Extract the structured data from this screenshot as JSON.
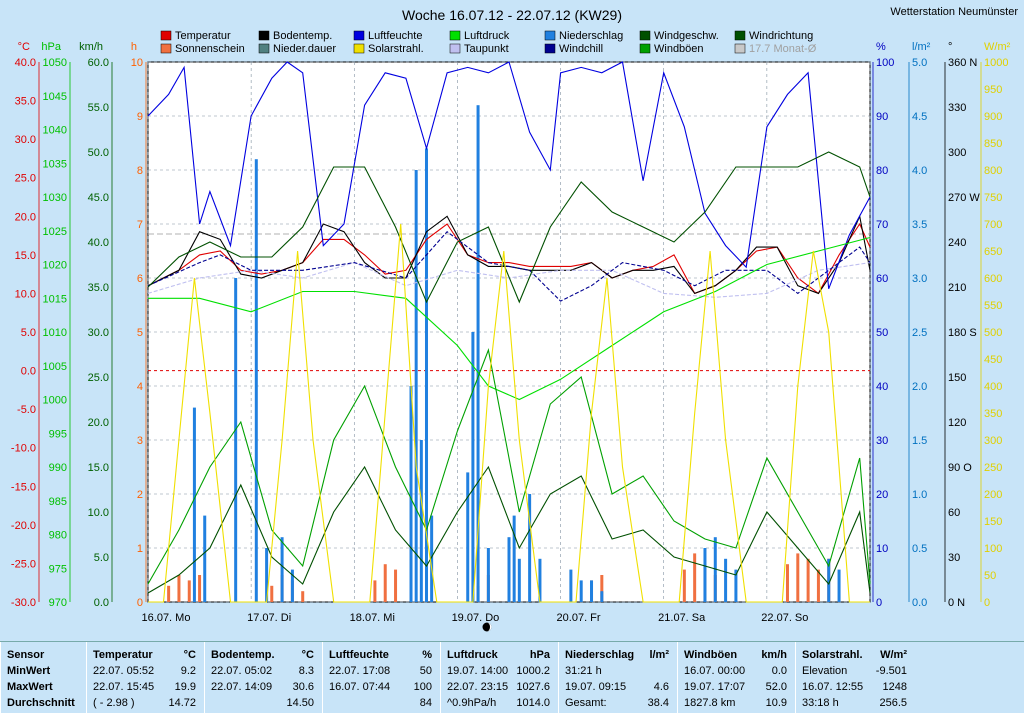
{
  "header": {
    "title": "Woche 16.07.12 - 22.07.12 (KW29)",
    "station": "Wetterstation Neumünster"
  },
  "axes_left": [
    {
      "unit": "°C",
      "color": "#e00000",
      "ticks": [
        "40.0",
        "35.0",
        "30.0",
        "25.0",
        "20.0",
        "15.0",
        "10.0",
        "5.0",
        "0.0",
        "-5.0",
        "-10.0",
        "-15.0",
        "-20.0",
        "-25.0",
        "-30.0"
      ]
    },
    {
      "unit": "hPa",
      "color": "#00c000",
      "ticks": [
        "1050",
        "1045",
        "1040",
        "1035",
        "1030",
        "1025",
        "1020",
        "1015",
        "1010",
        "1005",
        "1000",
        "995",
        "990",
        "985",
        "980",
        "975",
        "970"
      ]
    },
    {
      "unit": "km/h",
      "color": "#006000",
      "ticks": [
        "60.0",
        "55.0",
        "50.0",
        "45.0",
        "40.0",
        "35.0",
        "30.0",
        "25.0",
        "20.0",
        "15.0",
        "10.0",
        "5.0",
        "0.0"
      ]
    },
    {
      "unit": "h",
      "color": "#ff6000",
      "ticks": [
        "10",
        "9",
        "8",
        "7",
        "6",
        "5",
        "4",
        "3",
        "2",
        "1",
        "0"
      ]
    }
  ],
  "axes_right": [
    {
      "unit": "%",
      "color": "#0000c0",
      "ticks": [
        "100",
        "90",
        "80",
        "70",
        "60",
        "50",
        "40",
        "30",
        "20",
        "10",
        "0"
      ]
    },
    {
      "unit": "l/m²",
      "color": "#0070c0",
      "ticks": [
        "5.0",
        "4.5",
        "4.0",
        "3.5",
        "3.0",
        "2.5",
        "2.0",
        "1.5",
        "1.0",
        "0.5",
        "0.0"
      ]
    },
    {
      "unit": "°",
      "color": "#000000",
      "ticks": [
        "360 N",
        "330",
        "300",
        "270 W",
        "240",
        "210",
        "180 S",
        "150",
        "120",
        "90 O",
        "60",
        "30",
        "0 N"
      ]
    },
    {
      "unit": "W/m²",
      "color": "#e0d000",
      "ticks": [
        "1000",
        "950",
        "900",
        "850",
        "800",
        "750",
        "700",
        "650",
        "600",
        "550",
        "500",
        "450",
        "400",
        "350",
        "300",
        "250",
        "200",
        "150",
        "100",
        "50",
        "0"
      ]
    }
  ],
  "x_labels": [
    "16.07. Mo",
    "17.07. Di",
    "18.07. Mi",
    "19.07. Do",
    "20.07. Fr",
    "21.07. Sa",
    "22.07. So"
  ],
  "legend": [
    {
      "label": "Temperatur",
      "color": "#e00000"
    },
    {
      "label": "Bodentemp.",
      "color": "#000000"
    },
    {
      "label": "Luftfeuchte",
      "color": "#0000e0"
    },
    {
      "label": "Luftdruck",
      "color": "#00e000"
    },
    {
      "label": "Niederschlag",
      "color": "#2080e0"
    },
    {
      "label": "Windgeschw.",
      "color": "#005000"
    },
    {
      "label": "Windrichtung",
      "color": "#005000"
    },
    {
      "label": "Sonnenschein",
      "color": "#f07040"
    },
    {
      "label": "Nieder.dauer",
      "color": "#508080"
    },
    {
      "label": "Solarstrahl.",
      "color": "#f0e000"
    },
    {
      "label": "Taupunkt",
      "color": "#c0c0f0"
    },
    {
      "label": "Windchill",
      "color": "#000090"
    },
    {
      "label": "Windböen",
      "color": "#00a000"
    },
    {
      "label": "17.7 Monat-Ø",
      "color": "#c8c8c8"
    }
  ],
  "stats": {
    "sensor": {
      "h": "Sensor",
      "rows": [
        "MinWert",
        "MaxWert",
        "Durchschnitt"
      ]
    },
    "temp": {
      "h": "Temperatur",
      "u": "°C",
      "rows": [
        [
          "22.07.  05:52",
          "9.2"
        ],
        [
          "22.07.  15:45",
          "19.9"
        ],
        [
          "( - 2.98 )",
          "14.72"
        ]
      ]
    },
    "boden": {
      "h": "Bodentemp.",
      "u": "°C",
      "rows": [
        [
          "22.07.  05:02",
          "8.3"
        ],
        [
          "22.07.  14:09",
          "30.6"
        ],
        [
          "",
          "14.50"
        ]
      ]
    },
    "feuchte": {
      "h": "Luftfeuchte",
      "u": "%",
      "rows": [
        [
          "22.07.  17:08",
          "50"
        ],
        [
          "16.07.  07:44",
          "100"
        ],
        [
          "",
          "84"
        ]
      ]
    },
    "druck": {
      "h": "Luftdruck",
      "u": "hPa",
      "rows": [
        [
          "19.07.  14:00",
          "1000.2"
        ],
        [
          "22.07.  23:15",
          "1027.6"
        ],
        [
          "^0.9hPa/h",
          "1014.0"
        ]
      ]
    },
    "nieder": {
      "h": "Niederschlag",
      "u": "l/m²",
      "rows": [
        [
          "31:21 h",
          ""
        ],
        [
          "19.07.  09:15",
          "4.6"
        ],
        [
          "Gesamt:",
          "38.4"
        ]
      ]
    },
    "boeen": {
      "h": "Windböen",
      "u": "km/h",
      "rows": [
        [
          "16.07.  00:00",
          "0.0"
        ],
        [
          "19.07.  17:07",
          "52.0"
        ],
        [
          "1827.8 km",
          "10.9"
        ]
      ]
    },
    "solar": {
      "h": "Solarstrahl.",
      "u": "W/m²",
      "rows": [
        [
          "Elevation",
          "-9.501"
        ],
        [
          "16.07.  12:55",
          "1248"
        ],
        [
          "33:18 h",
          "256.5"
        ]
      ]
    }
  },
  "chart_data": {
    "type": "line",
    "title": "Woche 16.07.12 - 22.07.12 (KW29)",
    "x_unit": "day",
    "xlim": [
      0,
      7
    ],
    "ref_lines": {
      "frost_line_temp": 0.0,
      "month_avg_temp": 17.7
    },
    "series": [
      {
        "name": "Temperatur",
        "unit": "°C",
        "color": "#e00000",
        "x": [
          0,
          0.3,
          0.5,
          0.7,
          0.9,
          1.1,
          1.3,
          1.5,
          1.7,
          1.9,
          2.1,
          2.3,
          2.5,
          2.7,
          2.9,
          3.1,
          3.3,
          3.5,
          3.7,
          3.9,
          4.1,
          4.3,
          4.5,
          4.7,
          4.9,
          5.1,
          5.3,
          5.5,
          5.7,
          5.9,
          6.1,
          6.3,
          6.5,
          6.7,
          6.9,
          7
        ],
        "y": [
          11,
          13,
          15,
          15.5,
          13,
          12.5,
          13,
          14,
          17,
          17,
          15,
          12.5,
          13,
          17,
          19,
          15,
          14,
          14,
          13.5,
          13.5,
          13.5,
          14,
          12,
          13,
          13.5,
          15,
          10,
          11,
          13,
          15.5,
          16,
          12,
          10,
          15,
          19,
          16
        ]
      },
      {
        "name": "Bodentemp.",
        "unit": "°C",
        "color": "#000000",
        "x": [
          0,
          0.3,
          0.5,
          0.7,
          0.9,
          1.1,
          1.3,
          1.5,
          1.7,
          1.9,
          2.1,
          2.3,
          2.5,
          2.7,
          2.9,
          3.1,
          3.3,
          3.5,
          3.7,
          3.9,
          4.1,
          4.3,
          4.5,
          4.7,
          4.9,
          5.1,
          5.3,
          5.5,
          5.7,
          5.9,
          6.1,
          6.3,
          6.5,
          6.7,
          6.9,
          7
        ],
        "y": [
          11,
          13,
          18,
          17,
          12.5,
          12,
          13,
          14,
          19,
          18,
          14,
          12,
          12,
          18,
          20,
          15,
          13.5,
          13.5,
          13,
          13,
          13,
          14,
          12,
          13,
          13,
          13.5,
          10,
          11,
          13,
          16,
          16,
          11,
          10,
          14,
          20,
          13
        ]
      },
      {
        "name": "Taupunkt",
        "unit": "°C",
        "color": "#c0c0f0",
        "x": [
          0,
          0.5,
          1,
          1.5,
          2,
          2.5,
          3,
          3.5,
          4,
          4.5,
          5,
          5.5,
          6,
          6.5,
          7
        ],
        "y": [
          10,
          12,
          13,
          12,
          14,
          11,
          13,
          12,
          13,
          13,
          10,
          9.5,
          10,
          13,
          14
        ]
      },
      {
        "name": "Windchill",
        "unit": "°C",
        "color": "#000090",
        "x": [
          0,
          0.5,
          0.7,
          1,
          1.5,
          2,
          2.5,
          2.9,
          3.3,
          3.7,
          4,
          4.3,
          4.6,
          5,
          5.3,
          5.6,
          6,
          6.3,
          6.6,
          6.9,
          7
        ],
        "y": [
          11,
          14,
          15,
          13,
          13,
          14,
          12,
          18,
          14,
          13,
          9,
          11,
          14,
          13,
          11,
          13,
          13,
          10,
          13,
          16,
          14
        ]
      },
      {
        "name": "Luftfeuchte",
        "unit": "%",
        "color": "#0000e0",
        "x": [
          0,
          0.2,
          0.35,
          0.5,
          0.6,
          0.8,
          1,
          1.2,
          1.35,
          1.5,
          1.7,
          1.9,
          2.1,
          2.3,
          2.5,
          2.7,
          2.9,
          3.1,
          3.3,
          3.5,
          3.7,
          3.9,
          4,
          4.2,
          4.4,
          4.6,
          4.8,
          5,
          5.2,
          5.4,
          5.6,
          5.8,
          6,
          6.2,
          6.4,
          6.6,
          6.8,
          7
        ],
        "y": [
          90,
          94,
          99,
          70,
          76,
          66,
          90,
          97,
          100,
          98,
          66,
          70,
          92,
          98,
          97,
          84,
          98,
          99,
          98,
          100,
          87,
          80,
          98,
          99,
          98,
          100,
          78,
          98,
          88,
          72,
          66,
          62,
          88,
          94,
          98,
          58,
          68,
          75
        ]
      },
      {
        "name": "Luftdruck",
        "unit": "hPa",
        "color": "#00e000",
        "x": [
          0,
          0.5,
          1,
          1.5,
          2,
          2.5,
          3,
          3.3,
          3.6,
          4,
          4.5,
          5,
          5.5,
          6,
          6.5,
          7
        ],
        "y": [
          1015,
          1015,
          1013,
          1016,
          1016,
          1015,
          1008,
          1002,
          1000,
          1003,
          1008,
          1013,
          1016,
          1020,
          1022,
          1024
        ]
      },
      {
        "name": "Windgeschw.",
        "unit": "km/h",
        "color": "#005000",
        "x": [
          0,
          0.3,
          0.6,
          0.9,
          1.2,
          1.5,
          1.8,
          2.1,
          2.4,
          2.7,
          3,
          3.3,
          3.6,
          3.9,
          4.2,
          4.5,
          4.8,
          5.1,
          5.4,
          5.7,
          6,
          6.3,
          6.6,
          6.9,
          7
        ],
        "y": [
          1,
          3,
          6,
          13,
          5,
          2,
          10,
          15,
          8,
          4,
          10,
          15,
          6,
          12,
          14,
          7,
          8,
          5,
          4,
          3,
          10,
          6,
          2,
          10,
          1
        ]
      },
      {
        "name": "Windböen",
        "unit": "km/h",
        "color": "#00a000",
        "x": [
          0,
          0.3,
          0.6,
          0.9,
          1.2,
          1.5,
          1.8,
          2.1,
          2.4,
          2.7,
          3,
          3.3,
          3.6,
          3.9,
          4.2,
          4.5,
          4.8,
          5.1,
          5.4,
          5.7,
          6,
          6.3,
          6.6,
          6.9,
          7
        ],
        "y": [
          2,
          8,
          15,
          20,
          8,
          4,
          18,
          24,
          15,
          8,
          19,
          28,
          10,
          22,
          25,
          12,
          14,
          9,
          7,
          6,
          16,
          10,
          4,
          16,
          2
        ]
      },
      {
        "name": "Windrichtung",
        "unit": "°",
        "color": "#005000",
        "x": [
          0,
          0.3,
          0.6,
          0.9,
          1.2,
          1.5,
          1.8,
          2.1,
          2.4,
          2.7,
          3,
          3.3,
          3.6,
          3.9,
          4.2,
          4.5,
          4.8,
          5.1,
          5.4,
          5.7,
          6,
          6.3,
          6.6,
          6.9,
          7
        ],
        "y": [
          210,
          230,
          240,
          230,
          230,
          250,
          290,
          290,
          250,
          200,
          240,
          250,
          200,
          250,
          280,
          260,
          250,
          240,
          260,
          290,
          290,
          290,
          300,
          290,
          270
        ]
      },
      {
        "name": "Solarstrahl.",
        "unit": "W/m²",
        "color": "#f0e000",
        "x": [
          0,
          0.15,
          0.3,
          0.45,
          0.6,
          0.8,
          1,
          1.15,
          1.3,
          1.45,
          1.6,
          1.8,
          2,
          2.15,
          2.3,
          2.45,
          2.6,
          2.8,
          3,
          3.15,
          3.3,
          3.45,
          3.6,
          3.8,
          4,
          4.15,
          4.3,
          4.45,
          4.6,
          4.8,
          5,
          5.15,
          5.3,
          5.45,
          5.6,
          5.8,
          6,
          6.15,
          6.3,
          6.45,
          6.6,
          6.8,
          7
        ],
        "y": [
          0,
          0,
          300,
          600,
          350,
          0,
          0,
          0,
          300,
          650,
          300,
          0,
          0,
          0,
          350,
          700,
          250,
          0,
          0,
          0,
          400,
          650,
          300,
          0,
          0,
          0,
          350,
          600,
          250,
          0,
          0,
          0,
          350,
          650,
          300,
          0,
          0,
          0,
          400,
          650,
          500,
          0,
          0
        ]
      },
      {
        "name": "Sonnenschein",
        "unit": "h",
        "color": "#f07040",
        "x": [
          0.2,
          0.3,
          0.4,
          0.5,
          1.2,
          1.3,
          1.4,
          1.5,
          2.2,
          2.3,
          2.4,
          3.2,
          3.3,
          4.3,
          4.4,
          5.2,
          5.3,
          5.4,
          5.5,
          6.2,
          6.3,
          6.4,
          6.5,
          6.6
        ],
        "y": [
          0.3,
          0.5,
          0.4,
          0.5,
          0.3,
          0.5,
          0.4,
          0.2,
          0.4,
          0.7,
          0.6,
          0.3,
          0.5,
          0.4,
          0.5,
          0.6,
          0.9,
          0.7,
          0.5,
          0.7,
          0.9,
          0.8,
          0.6,
          0.8
        ]
      },
      {
        "name": "Niederschlag",
        "unit": "l/m²",
        "color": "#2080e0",
        "x": [
          0.45,
          0.55,
          0.85,
          1.05,
          1.15,
          1.3,
          1.4,
          2.55,
          2.6,
          2.65,
          2.7,
          2.75,
          3.1,
          3.15,
          3.2,
          3.3,
          3.5,
          3.55,
          3.6,
          3.7,
          3.8,
          4.1,
          4.2,
          4.3,
          4.4,
          5.4,
          5.5,
          5.6,
          5.7,
          6.6,
          6.7
        ],
        "y": [
          1.8,
          0.8,
          3.0,
          4.1,
          0.5,
          0.6,
          0.3,
          2.0,
          4.0,
          1.5,
          4.2,
          0.8,
          1.2,
          2.5,
          4.6,
          0.5,
          0.6,
          0.8,
          0.4,
          1.0,
          0.4,
          0.3,
          0.2,
          0.2,
          0.1,
          0.5,
          0.6,
          0.4,
          0.3,
          0.4,
          0.3
        ]
      }
    ]
  }
}
